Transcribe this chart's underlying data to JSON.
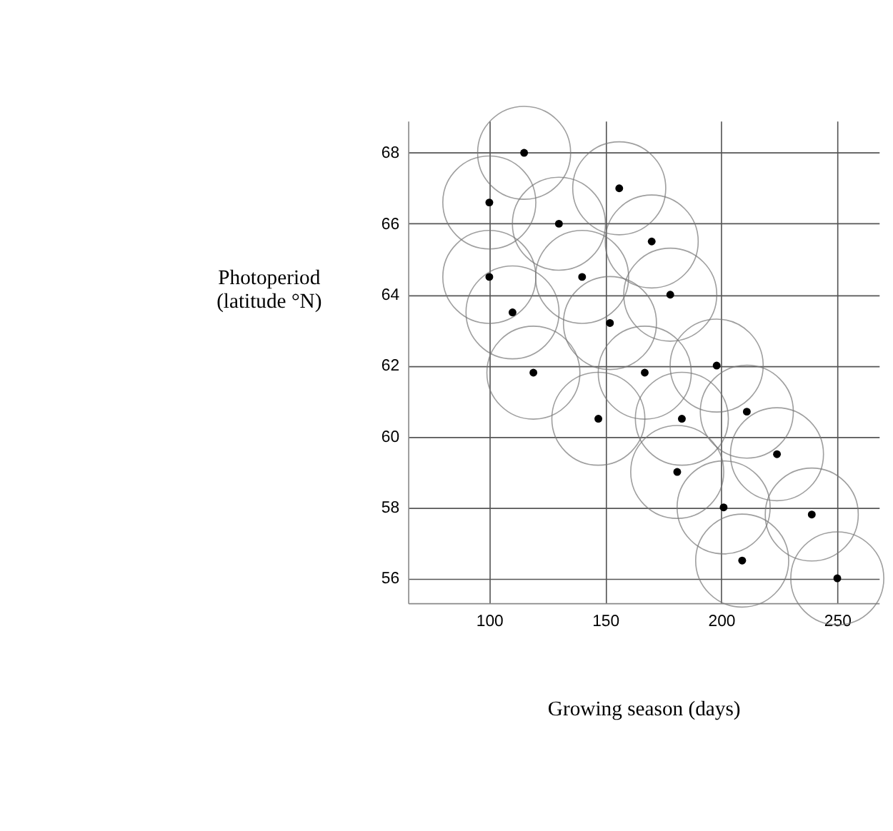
{
  "chart_data": {
    "type": "bubble",
    "xlabel": "Growing season (days)",
    "ylabel": "Photoperiod\n(latitude °N)",
    "x": [
      100,
      115,
      130,
      156,
      170,
      100,
      140,
      178,
      110,
      152,
      119,
      167,
      198,
      147,
      183,
      211,
      181,
      224,
      201,
      239,
      209,
      250
    ],
    "series": [
      {
        "color": "#000000",
        "values": [
          66.6,
          68,
          66,
          67,
          65.5,
          64.5,
          64.5,
          64,
          63.5,
          63.2,
          61.8,
          61.8,
          62,
          60.5,
          60.5,
          60.7,
          59,
          59.5,
          58,
          57.8,
          56.5,
          56
        ],
        "sizes": [
          1,
          1,
          1,
          1,
          1,
          1,
          1,
          1,
          1,
          1,
          1,
          1,
          1,
          1,
          1,
          1,
          1,
          1,
          1,
          1,
          1,
          1
        ]
      }
    ],
    "xlim": [
      65,
      268
    ],
    "ylim": [
      55.3,
      68.9
    ],
    "xticks": [
      100,
      150,
      200,
      250
    ],
    "yticks": [
      56,
      58,
      60,
      62,
      64,
      66,
      68
    ],
    "grid": true
  }
}
